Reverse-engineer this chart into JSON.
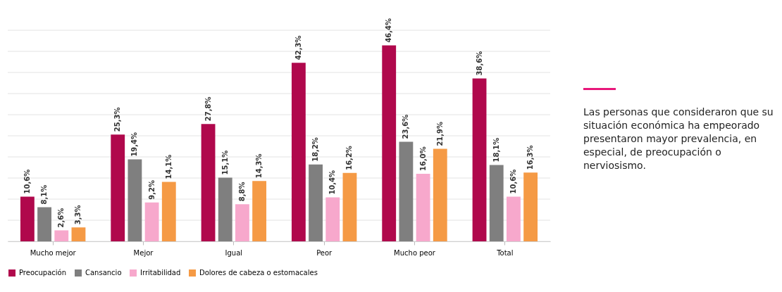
{
  "chart_data": {
    "type": "bar",
    "categories": [
      "Mucho mejor",
      "Mejor",
      "Igual",
      "Peor",
      "Mucho peor",
      "Total"
    ],
    "series": [
      {
        "name": "Preocupación",
        "color": "#b0084c",
        "values": [
          10.6,
          25.3,
          27.8,
          42.3,
          46.4,
          38.6
        ],
        "value_labels": [
          "10,6%",
          "25,3%",
          "27,8%",
          "42,3%",
          "46,4%",
          "38,6%"
        ]
      },
      {
        "name": "Cansancio",
        "color": "#7f7f7f",
        "values": [
          8.1,
          19.4,
          15.1,
          18.2,
          23.6,
          18.1
        ],
        "value_labels": [
          "8,1%",
          "19,4%",
          "15,1%",
          "18,2%",
          "23,6%",
          "18,1%"
        ]
      },
      {
        "name": "Irritabilidad",
        "color": "#f7a8cc",
        "values": [
          2.6,
          9.2,
          8.8,
          10.4,
          16.0,
          10.6
        ],
        "value_labels": [
          "2,6%",
          "9,2%",
          "8,8%",
          "10,4%",
          "16,0%",
          "10,6%"
        ]
      },
      {
        "name": "Dolores de cabeza o estomacales",
        "color": "#f59a45",
        "values": [
          3.3,
          14.1,
          14.3,
          16.2,
          21.9,
          16.3
        ],
        "value_labels": [
          "3,3%",
          "14,1%",
          "14,3%",
          "16,2%",
          "21,9%",
          "16,3%"
        ]
      }
    ],
    "ylim": [
      0,
      50
    ],
    "yticks": [
      {
        "value": 0,
        "label": null
      },
      {
        "value": 5,
        "label": null
      },
      {
        "value": 10,
        "label": null
      },
      {
        "value": 15,
        "label": null
      },
      {
        "value": 20,
        "label": null
      },
      {
        "value": 25,
        "label": null
      },
      {
        "value": 30,
        "label": null
      },
      {
        "value": 35,
        "label": null
      },
      {
        "value": 40,
        "label": null
      },
      {
        "value": 45,
        "label": null
      },
      {
        "value": 50,
        "label": null
      }
    ],
    "tick_labels": "x",
    "grid": "y",
    "legend": "bottom",
    "annotations": [
      "Las personas que consideraron que su situación económica ha empeorado presentaron mayor prevalencia, en especial, de preocupación o nerviosismo."
    ]
  }
}
